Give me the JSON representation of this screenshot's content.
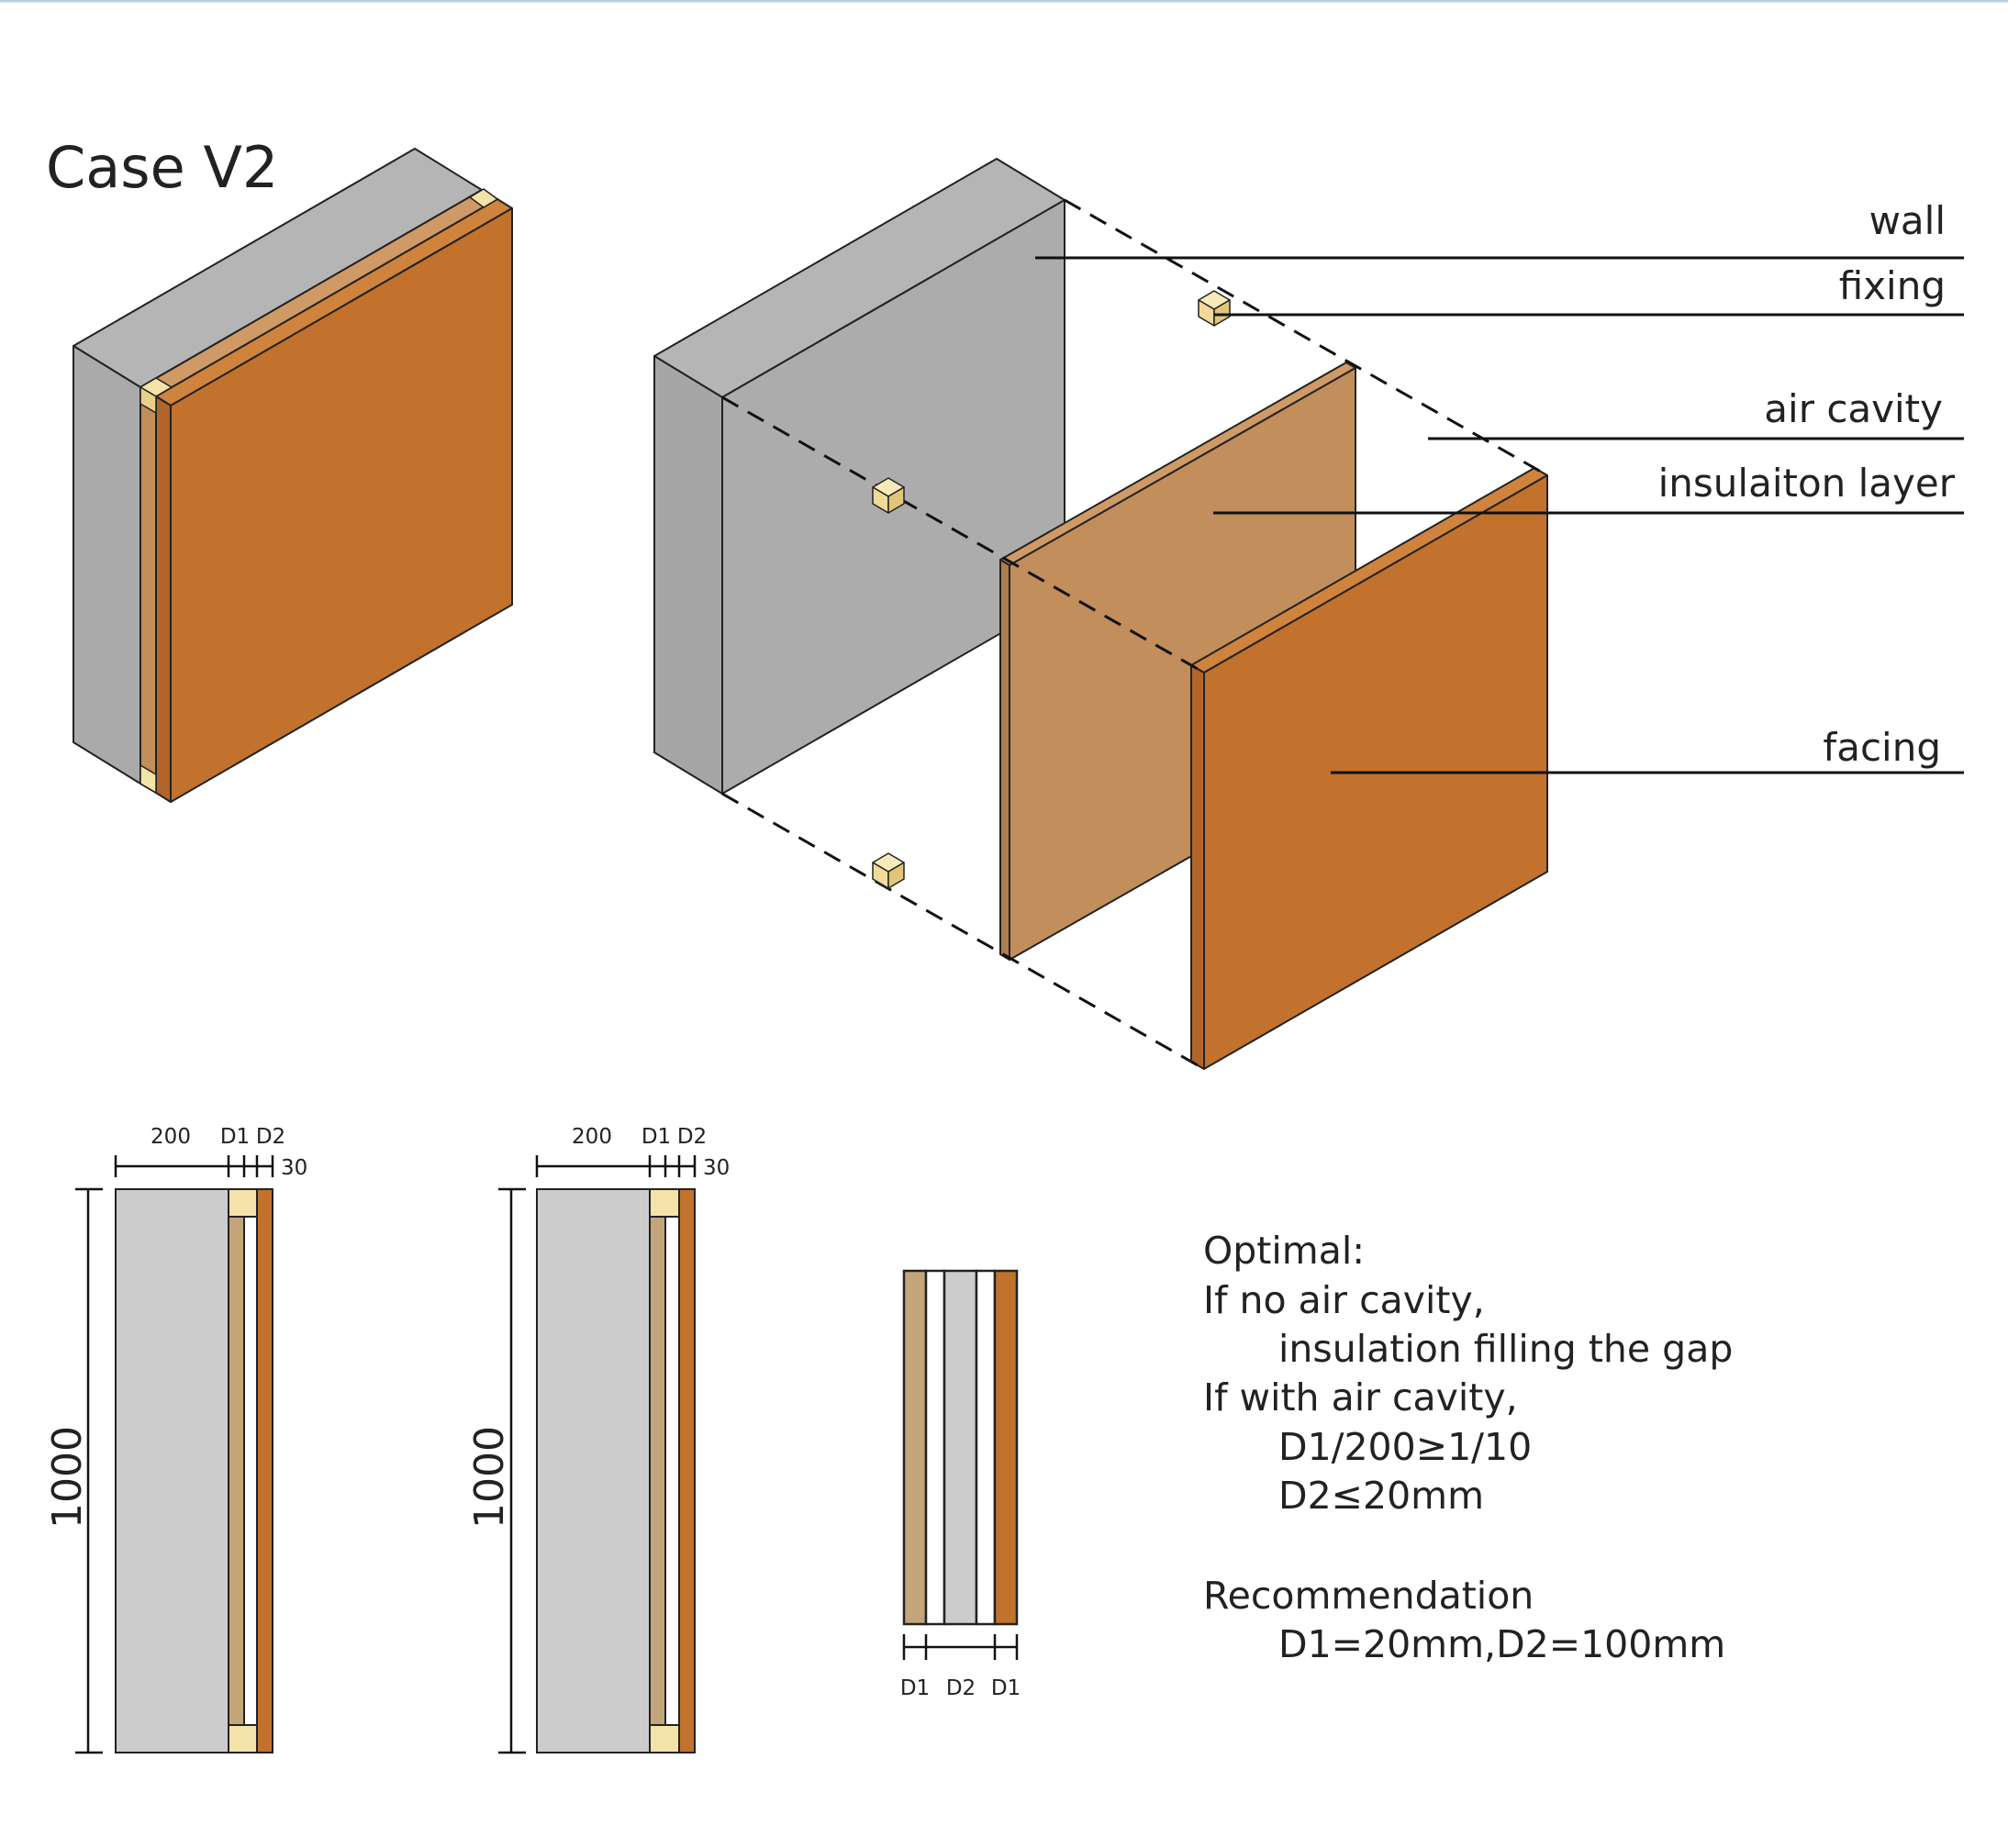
{
  "title": "Case V2",
  "labels": {
    "wall": "wall",
    "fixing": "fixing",
    "air_cavity": "air cavity",
    "insulation": "insulaiton layer",
    "facing": "facing"
  },
  "dims": {
    "wall": "200",
    "d1": "D1",
    "d2": "D2",
    "facing": "30",
    "height": "1000"
  },
  "strip_labels": [
    "D1",
    "D2",
    "D1"
  ],
  "notes": [
    "Optimal:",
    "If no air cavity,",
    "insulation filling the gap",
    "If with air cavity,",
    "D1/200≥1/10",
    "D2≤20mm",
    "Recommendation",
    "D1=20mm,D2=100mm"
  ],
  "colors": {
    "wall": "#acacac",
    "wall_section": "#cccccc",
    "insulation": "#c18e5c",
    "insulation_section": "#c3a57a",
    "facing": "#c2722c",
    "fixing": "#f4e3a8",
    "top_rule": "#b8cfe0"
  }
}
